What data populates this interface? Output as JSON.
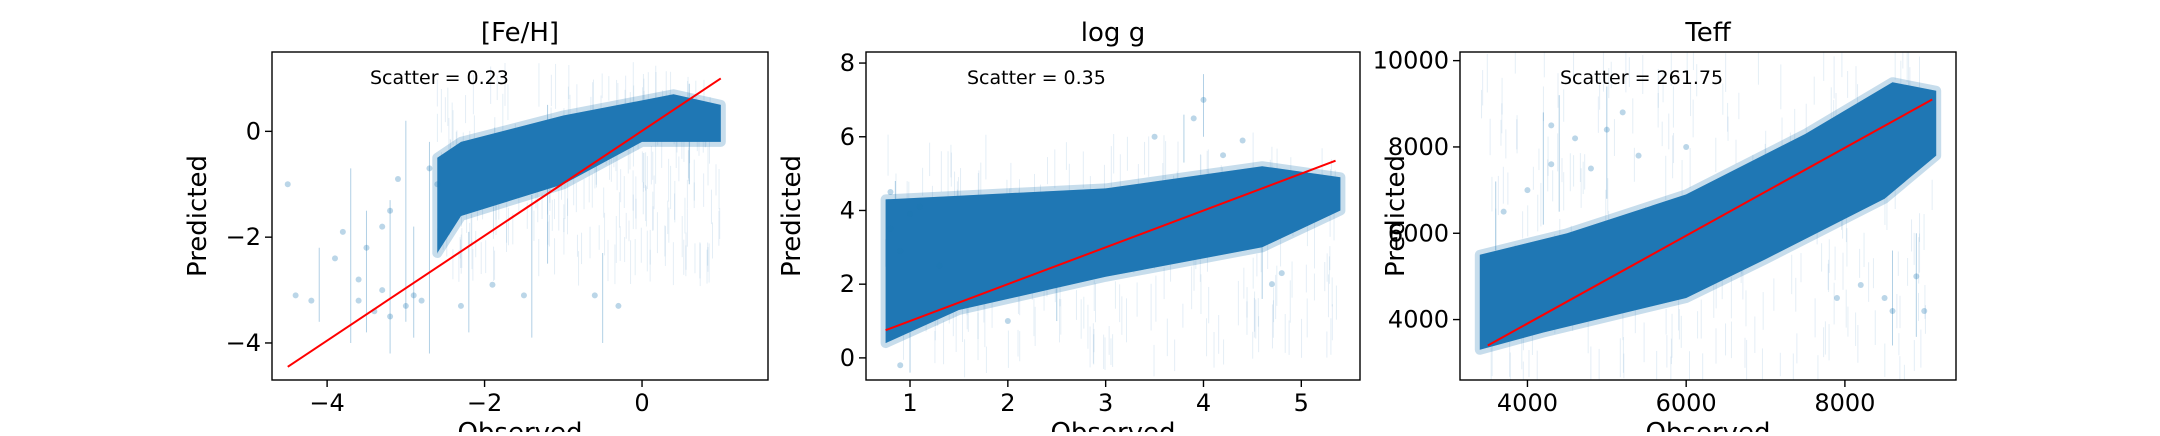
{
  "chart_data": [
    {
      "type": "scatter",
      "title": "[Fe/H]",
      "xlabel": "Observed",
      "ylabel": "Predicted",
      "xlim": [
        -4.7,
        1.6
      ],
      "ylim": [
        -4.7,
        1.5
      ],
      "xticks": [
        -4,
        -2,
        0
      ],
      "xtick_labels": [
        "−4",
        "−2",
        "0"
      ],
      "yticks": [
        -4,
        -2,
        0
      ],
      "ytick_labels": [
        "−4",
        "−2",
        "0"
      ],
      "annotation": "Scatter = 0.23",
      "point_color": "#1f77b4",
      "line_color": "#ff0000",
      "reference_line": {
        "x": [
          -4.5,
          1.0
        ],
        "y": [
          -4.45,
          1.0
        ]
      },
      "dense_region": [
        [
          -2.6,
          -2.3
        ],
        [
          -2.3,
          -1.6
        ],
        [
          -1.0,
          -1.0
        ],
        [
          0.0,
          -0.2
        ],
        [
          1.0,
          -0.2
        ],
        [
          1.0,
          0.5
        ],
        [
          0.4,
          0.7
        ],
        [
          -1.0,
          0.3
        ],
        [
          -2.3,
          -0.2
        ],
        [
          -2.6,
          -0.5
        ]
      ],
      "sample_points": [
        [
          -3.6,
          -3.2
        ],
        [
          -3.3,
          -3.0
        ],
        [
          -3.0,
          -3.3
        ],
        [
          -3.2,
          -3.5
        ],
        [
          -2.9,
          -3.1
        ],
        [
          -3.8,
          -1.9
        ],
        [
          -3.5,
          -2.2
        ],
        [
          -4.2,
          -3.2
        ],
        [
          -3.2,
          -1.5
        ],
        [
          -3.6,
          -2.8
        ],
        [
          -4.4,
          -3.1
        ],
        [
          -2.8,
          -3.2
        ],
        [
          -2.6,
          -1.0
        ],
        [
          -2.7,
          -0.7
        ],
        [
          -3.3,
          -1.8
        ],
        [
          -3.1,
          -0.9
        ],
        [
          -1.5,
          -3.1
        ],
        [
          -0.6,
          -3.1
        ],
        [
          -0.3,
          -3.3
        ],
        [
          -1.9,
          -2.9
        ],
        [
          -4.5,
          -1.0
        ],
        [
          -3.9,
          -2.4
        ],
        [
          -3.4,
          -3.4
        ],
        [
          -2.3,
          -3.3
        ]
      ],
      "error_bars": [
        [
          -3.7,
          -4.0,
          -0.7
        ],
        [
          -3.2,
          -4.2,
          -1.3
        ],
        [
          -2.9,
          -3.9,
          -1.8
        ],
        [
          -2.7,
          -4.2,
          -0.2
        ],
        [
          -3.5,
          -3.8,
          -1.5
        ],
        [
          -4.1,
          -3.6,
          -2.2
        ],
        [
          -1.4,
          -3.9,
          -1.2
        ],
        [
          -0.5,
          -4.0,
          -2.3
        ],
        [
          -2.2,
          -3.8,
          -1.9
        ],
        [
          0.6,
          -1.0,
          0.9
        ],
        [
          -1.2,
          -2.5,
          0.5
        ],
        [
          -3.0,
          -3.6,
          0.2
        ]
      ]
    },
    {
      "type": "scatter",
      "title": "log g",
      "xlabel": "Observed",
      "ylabel": "Predicted",
      "xlim": [
        0.55,
        5.6
      ],
      "ylim": [
        -0.6,
        8.3
      ],
      "xticks": [
        1,
        2,
        3,
        4,
        5
      ],
      "xtick_labels": [
        "1",
        "2",
        "3",
        "4",
        "5"
      ],
      "yticks": [
        0,
        2,
        4,
        6,
        8
      ],
      "ytick_labels": [
        "0",
        "2",
        "4",
        "6",
        "8"
      ],
      "annotation": "Scatter = 0.35",
      "point_color": "#1f77b4",
      "line_color": "#ff0000",
      "reference_line": {
        "x": [
          0.75,
          5.35
        ],
        "y": [
          0.75,
          5.35
        ]
      },
      "dense_region": [
        [
          0.75,
          0.4
        ],
        [
          1.5,
          1.3
        ],
        [
          3.0,
          2.2
        ],
        [
          4.6,
          3.0
        ],
        [
          5.4,
          4.0
        ],
        [
          5.4,
          4.9
        ],
        [
          4.6,
          5.2
        ],
        [
          3.0,
          4.6
        ],
        [
          1.5,
          4.4
        ],
        [
          0.75,
          4.3
        ]
      ],
      "sample_points": [
        [
          0.8,
          3.5
        ],
        [
          0.9,
          2.9
        ],
        [
          1.0,
          3.9
        ],
        [
          1.1,
          4.1
        ],
        [
          4.4,
          5.9
        ],
        [
          4.0,
          7.0
        ],
        [
          3.9,
          6.5
        ],
        [
          3.5,
          6.0
        ],
        [
          0.8,
          4.5
        ],
        [
          4.7,
          2.0
        ],
        [
          4.8,
          2.3
        ],
        [
          0.9,
          -0.2
        ],
        [
          4.2,
          5.5
        ],
        [
          2.0,
          1.0
        ],
        [
          1.3,
          2.5
        ]
      ],
      "error_bars": [
        [
          0.85,
          1.5,
          4.8
        ],
        [
          1.0,
          -0.4,
          2.0
        ],
        [
          4.0,
          6.0,
          7.7
        ],
        [
          3.8,
          5.3,
          6.6
        ],
        [
          4.6,
          1.6,
          3.0
        ],
        [
          2.5,
          1.0,
          2.2
        ]
      ]
    },
    {
      "type": "scatter",
      "title": "Teff",
      "xlabel": "Observed",
      "ylabel": "Predicted",
      "xlim": [
        3150,
        9400
      ],
      "ylim": [
        2600,
        10200
      ],
      "xticks": [
        4000,
        6000,
        8000
      ],
      "xtick_labels": [
        "4000",
        "6000",
        "8000"
      ],
      "yticks": [
        4000,
        6000,
        8000,
        10000
      ],
      "ytick_labels": [
        "4000",
        "6000",
        "8000",
        "10000"
      ],
      "annotation": "Scatter = 261.75",
      "point_color": "#1f77b4",
      "line_color": "#ff0000",
      "reference_line": {
        "x": [
          3500,
          9100
        ],
        "y": [
          3400,
          9100
        ]
      },
      "dense_region": [
        [
          3400,
          3300
        ],
        [
          4200,
          3700
        ],
        [
          6000,
          4500
        ],
        [
          7000,
          5400
        ],
        [
          8500,
          6800
        ],
        [
          9150,
          7800
        ],
        [
          9150,
          9300
        ],
        [
          8600,
          9500
        ],
        [
          7500,
          8300
        ],
        [
          6000,
          6900
        ],
        [
          4500,
          6000
        ],
        [
          3400,
          5500
        ]
      ],
      "sample_points": [
        [
          4300,
          8500
        ],
        [
          4600,
          8200
        ],
        [
          5000,
          8400
        ],
        [
          5400,
          7800
        ],
        [
          4800,
          7500
        ],
        [
          4000,
          7000
        ],
        [
          4300,
          7600
        ],
        [
          5200,
          8800
        ],
        [
          8600,
          4200
        ],
        [
          8500,
          4500
        ],
        [
          8900,
          5000
        ],
        [
          8200,
          4800
        ],
        [
          7900,
          4500
        ],
        [
          9000,
          4200
        ],
        [
          3700,
          6500
        ],
        [
          6000,
          8000
        ]
      ],
      "error_bars": [
        [
          4400,
          6500,
          9200
        ],
        [
          5000,
          6800,
          9400
        ],
        [
          4200,
          6200,
          8800
        ],
        [
          8600,
          3400,
          5600
        ],
        [
          8900,
          3600,
          6000
        ],
        [
          3600,
          5600,
          7200
        ]
      ]
    }
  ]
}
